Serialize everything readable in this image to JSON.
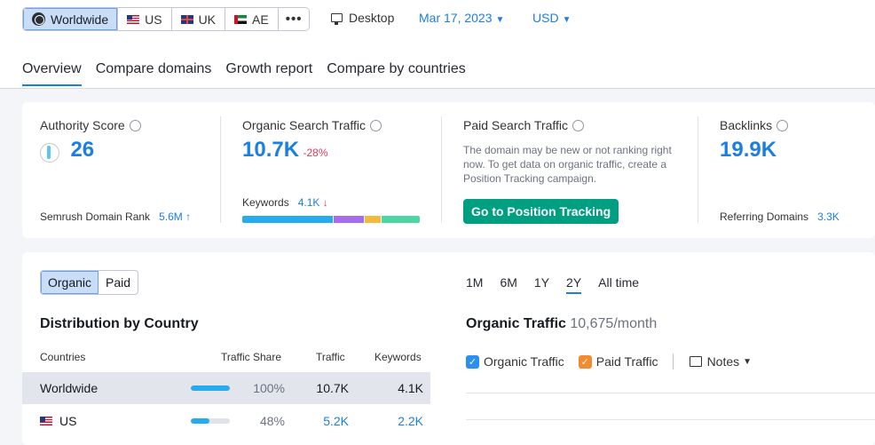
{
  "regions": [
    {
      "label": "Worldwide",
      "active": true,
      "icon": "globe-icon"
    },
    {
      "label": "US",
      "active": false,
      "icon": "us-flag-icon"
    },
    {
      "label": "UK",
      "active": false,
      "icon": "uk-flag-icon"
    },
    {
      "label": "AE",
      "active": false,
      "icon": "ae-flag-icon"
    }
  ],
  "more_label": "•••",
  "device": "Desktop",
  "date": "Mar 17, 2023",
  "currency": "USD",
  "tabs": [
    "Overview",
    "Compare domains",
    "Growth report",
    "Compare by countries"
  ],
  "metrics": {
    "authority": {
      "title": "Authority Score",
      "value": "26",
      "rank_label": "Semrush Domain Rank",
      "rank_value": "5.6M",
      "rank_trend": "↑"
    },
    "organic": {
      "title": "Organic Search Traffic",
      "value": "10.7K",
      "change": "-28%",
      "keywords_label": "Keywords",
      "keywords_value": "4.1K",
      "keywords_trend": "↓",
      "keyword_segments": [
        {
          "fraction": 0.52,
          "color": "#26aaf0"
        },
        {
          "fraction": 0.17,
          "color": "#a56bf0"
        },
        {
          "fraction": 0.09,
          "color": "#f5b93e"
        },
        {
          "fraction": 0.22,
          "color": "#4dd6a4"
        }
      ]
    },
    "paid": {
      "title": "Paid Search Traffic",
      "message": "The domain may be new or not ranking right now. To get data on organic traffic, create a Position Tracking campaign.",
      "cta": "Go to Position Tracking"
    },
    "backlinks": {
      "title": "Backlinks",
      "value": "19.9K",
      "ref_label": "Referring Domains",
      "ref_value": "3.3K"
    }
  },
  "distribution": {
    "toggle": [
      "Organic",
      "Paid"
    ],
    "title": "Distribution by Country",
    "headers": {
      "countries": "Countries",
      "share": "Traffic Share",
      "traffic": "Traffic",
      "keywords": "Keywords"
    },
    "rows": [
      {
        "country": "Worldwide",
        "share": "100%",
        "share_fraction": 1.0,
        "traffic": "10.7K",
        "keywords": "4.1K",
        "highlight": true
      },
      {
        "country": "US",
        "share": "48%",
        "share_fraction": 0.48,
        "traffic": "5.2K",
        "keywords": "2.2K",
        "highlight": false
      }
    ]
  },
  "organic_chart": {
    "periods": [
      "1M",
      "6M",
      "1Y",
      "2Y",
      "All time"
    ],
    "selected_period": "2Y",
    "title": "Organic Traffic",
    "subtitle": "10,675/month",
    "legend": [
      {
        "label": "Organic Traffic",
        "color": "#2a8ff0"
      },
      {
        "label": "Paid Traffic",
        "color": "#f28b30"
      }
    ],
    "notes_label": "Notes"
  }
}
